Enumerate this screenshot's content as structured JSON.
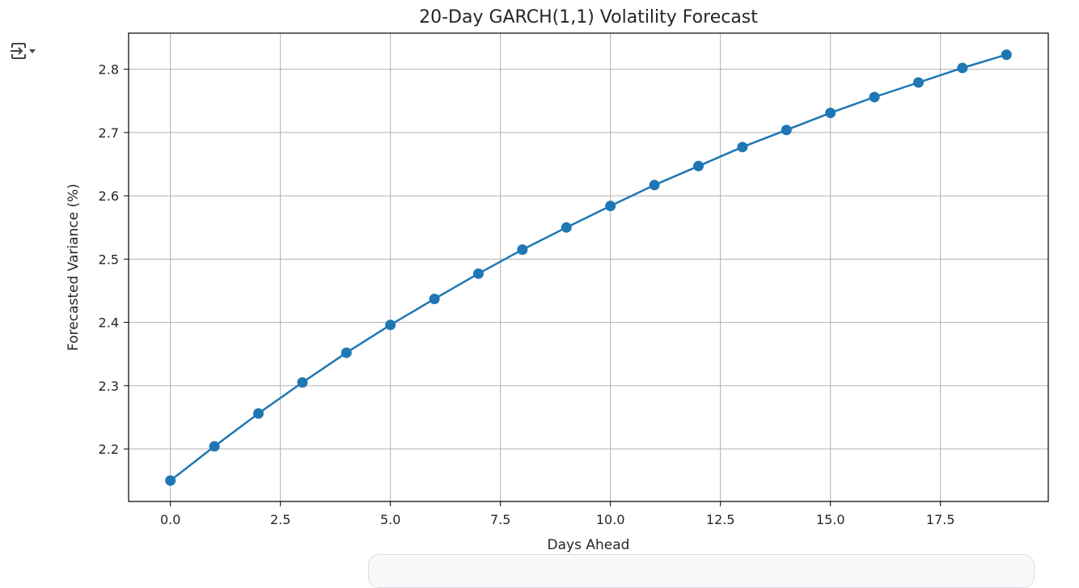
{
  "ui": {
    "output_toggle_icon": "output-collapse-icon"
  },
  "chart_data": {
    "type": "line",
    "title": "20-Day GARCH(1,1) Volatility Forecast",
    "xlabel": "Days Ahead",
    "ylabel": "Forecasted Variance (%)",
    "x": [
      0,
      1,
      2,
      3,
      4,
      5,
      6,
      7,
      8,
      9,
      10,
      11,
      12,
      13,
      14,
      15,
      16,
      17,
      18,
      19
    ],
    "series": [
      {
        "color": "#1f77b4",
        "marker": "circle",
        "values": [
          2.15,
          2.204,
          2.256,
          2.305,
          2.352,
          2.396,
          2.437,
          2.477,
          2.515,
          2.55,
          2.584,
          2.617,
          2.647,
          2.677,
          2.704,
          2.731,
          2.756,
          2.779,
          2.802,
          2.823
        ]
      }
    ],
    "xticks": [
      "0.0",
      "2.5",
      "5.0",
      "7.5",
      "10.0",
      "12.5",
      "15.0",
      "17.5"
    ],
    "yticks": [
      "2.2",
      "2.3",
      "2.4",
      "2.5",
      "2.6",
      "2.7",
      "2.8"
    ],
    "xlim": [
      -0.95,
      19.95
    ],
    "ylim": [
      2.117,
      2.857
    ],
    "grid": true
  }
}
